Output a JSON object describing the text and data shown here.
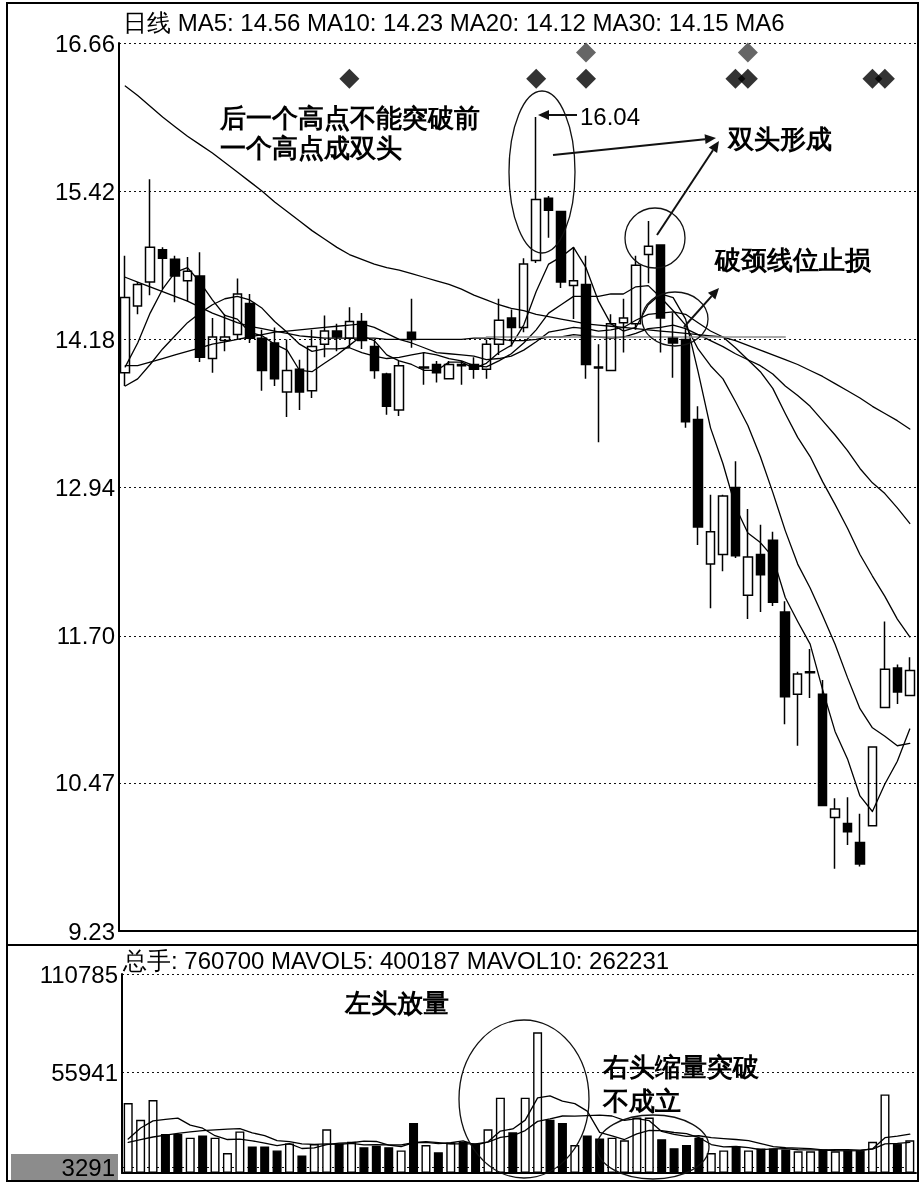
{
  "chart_data": [
    {
      "type": "candlestick",
      "title": "日线 MA5: 14.56 MA10: 14.23 MA20: 14.12 MA30: 14.15 MA6",
      "categories": [
        null,
        null,
        null,
        null,
        null,
        null,
        null,
        null,
        null,
        null,
        null,
        null,
        null,
        null,
        null,
        null,
        null,
        null,
        null,
        null,
        null,
        null,
        null,
        null,
        null,
        null,
        null,
        null,
        null,
        null,
        null,
        null,
        null,
        null,
        null,
        null,
        null,
        null,
        null,
        null,
        null,
        null,
        null,
        null,
        null,
        null,
        null,
        null,
        null,
        null,
        null,
        null,
        null,
        null,
        null,
        null,
        null,
        null,
        null,
        null,
        null,
        null,
        null,
        null
      ],
      "ohlc": [
        [
          13.9,
          14.88,
          13.79,
          14.53
        ],
        [
          14.46,
          14.66,
          14.39,
          14.64
        ],
        [
          14.66,
          15.52,
          14.55,
          14.95
        ],
        [
          14.93,
          14.95,
          14.6,
          14.86
        ],
        [
          14.85,
          14.88,
          14.49,
          14.71
        ],
        [
          14.67,
          14.87,
          14.5,
          14.75
        ],
        [
          14.71,
          14.91,
          13.99,
          14.03
        ],
        [
          14.02,
          14.36,
          13.9,
          14.2
        ],
        [
          14.17,
          14.39,
          14.08,
          14.2
        ],
        [
          14.22,
          14.69,
          14.18,
          14.56
        ],
        [
          14.48,
          14.56,
          14.15,
          14.19
        ],
        [
          14.19,
          14.26,
          13.75,
          13.92
        ],
        [
          14.15,
          14.28,
          13.79,
          13.85
        ],
        [
          13.74,
          14.18,
          13.53,
          13.92
        ],
        [
          13.93,
          14.01,
          13.59,
          13.74
        ],
        [
          13.75,
          14.26,
          13.69,
          14.12
        ],
        [
          14.14,
          14.38,
          14.03,
          14.25
        ],
        [
          14.25,
          14.31,
          14.08,
          14.2
        ],
        [
          14.19,
          14.45,
          14.11,
          14.33
        ],
        [
          14.33,
          14.4,
          14.1,
          14.17
        ],
        [
          14.12,
          14.17,
          13.85,
          13.92
        ],
        [
          13.89,
          13.9,
          13.55,
          13.62
        ],
        [
          13.59,
          14,
          13.54,
          13.96
        ],
        [
          14.24,
          14.52,
          14.11,
          14.18
        ],
        [
          13.94,
          14.07,
          13.8,
          13.95
        ],
        [
          13.97,
          14,
          13.82,
          13.9
        ],
        [
          13.85,
          14,
          13.85,
          13.97
        ],
        [
          13.97,
          14,
          13.8,
          13.96
        ],
        [
          13.97,
          14.03,
          13.85,
          13.93
        ],
        [
          13.93,
          14.18,
          13.85,
          14.14
        ],
        [
          14.14,
          14.52,
          14.05,
          14.34
        ],
        [
          14.36,
          14.43,
          14.12,
          14.28
        ],
        [
          14.28,
          14.86,
          14.24,
          14.81
        ],
        [
          14.84,
          16.04,
          14.82,
          15.35
        ],
        [
          15.36,
          15.38,
          15.03,
          15.26
        ],
        [
          15.25,
          15.25,
          14.61,
          14.66
        ],
        [
          14.63,
          14.95,
          14.35,
          14.67
        ],
        [
          14.64,
          14.88,
          13.85,
          13.97
        ],
        [
          13.95,
          14.14,
          13.32,
          13.94
        ],
        [
          13.92,
          14.39,
          13.92,
          14.31
        ],
        [
          14.32,
          14.52,
          14.07,
          14.36
        ],
        [
          14.31,
          14.88,
          14.26,
          14.8
        ],
        [
          14.89,
          15.17,
          14.65,
          14.96
        ],
        [
          14.97,
          14.97,
          14.07,
          14.36
        ],
        [
          14.19,
          14.4,
          13.86,
          14.15
        ],
        [
          14.18,
          14.28,
          13.44,
          13.49
        ],
        [
          13.51,
          13.62,
          12.46,
          12.61
        ],
        [
          12.3,
          12.88,
          11.93,
          12.57
        ],
        [
          12.38,
          12.88,
          12.24,
          12.87
        ],
        [
          12.94,
          13.16,
          12.35,
          12.37
        ],
        [
          12.04,
          12.76,
          11.84,
          12.36
        ],
        [
          12.38,
          12.63,
          11.9,
          12.21
        ],
        [
          12.5,
          12.57,
          11.95,
          11.98
        ],
        [
          11.9,
          11.99,
          10.96,
          11.19
        ],
        [
          11.21,
          11.4,
          10.78,
          11.38
        ],
        [
          11.39,
          11.59,
          11.18,
          11.4
        ],
        [
          11.21,
          11.33,
          10.28,
          10.28
        ],
        [
          10.18,
          10.34,
          9.75,
          10.25
        ],
        [
          10.13,
          10.35,
          9.95,
          10.06
        ],
        [
          9.97,
          10.21,
          9.77,
          9.79
        ],
        [
          10.11,
          10.77,
          10.11,
          10.77
        ],
        [
          11.1,
          11.82,
          11.1,
          11.42
        ],
        [
          11.43,
          11.46,
          11.13,
          11.23
        ],
        [
          11.2,
          11.52,
          11.2,
          11.41
        ]
      ],
      "series": [
        {
          "type": "line",
          "color": "#000000",
          "values": [
            13.95,
            14.15,
            14.4,
            14.6,
            14.74,
            14.78,
            14.66,
            14.51,
            14.38,
            14.35,
            14.24,
            14.21,
            14.14,
            14.09,
            13.92,
            13.91,
            13.98,
            14.05,
            14.13,
            14.21,
            14.17,
            14.05,
            14,
            13.97,
            13.92,
            13.92,
            13.99,
            13.99,
            13.94,
            13.98,
            14.07,
            14.13,
            14.3,
            14.58,
            14.81,
            14.87,
            14.95,
            14.78,
            14.5,
            14.31,
            14.25,
            14.28,
            14.47,
            14.56,
            14.53,
            14.35,
            13.91,
            13.44,
            13.14,
            12.78,
            12.56,
            12.48,
            12.36,
            12.02,
            11.82,
            11.63,
            11.25,
            10.9,
            10.67,
            10.36,
            10.23,
            10.46,
            10.65,
            10.92
          ]
        },
        {
          "type": "line",
          "color": "#000000",
          "values": [
            13.79,
            13.85,
            13.97,
            14.1,
            14.21,
            14.32,
            14.4,
            14.47,
            14.52,
            14.54,
            14.51,
            14.44,
            14.33,
            14.24,
            14.14,
            14.08,
            14.1,
            14.1,
            14.11,
            14.07,
            14.04,
            14.02,
            14.03,
            14.05,
            14.07,
            14.05,
            14.02,
            14,
            13.96,
            13.95,
            14,
            14.06,
            14.15,
            14.26,
            14.4,
            14.47,
            14.54,
            14.54,
            14.54,
            14.56,
            14.56,
            14.62,
            14.63,
            14.53,
            14.42,
            14.3,
            14.1,
            13.96,
            13.85,
            13.66,
            13.46,
            13.2,
            12.9,
            12.58,
            12.3,
            12.1,
            11.87,
            11.63,
            11.35,
            11.09,
            10.93,
            10.86,
            10.78,
            10.8
          ]
        },
        {
          "type": "line",
          "color": "#000000",
          "values": [
            13.96,
            13.96,
            13.99,
            14.02,
            14.05,
            14.08,
            14.11,
            14.14,
            14.16,
            14.18,
            14.2,
            14.22,
            14.24,
            14.25,
            14.26,
            14.27,
            14.28,
            14.29,
            14.3,
            14.31,
            14.28,
            14.23,
            14.18,
            14.15,
            14.11,
            14.07,
            14.06,
            14.05,
            14.04,
            14.01,
            14.02,
            14.04,
            14.09,
            14.16,
            14.24,
            14.26,
            14.28,
            14.27,
            14.25,
            14.26,
            14.28,
            14.34,
            14.39,
            14.4,
            14.41,
            14.39,
            14.32,
            14.25,
            14.2,
            14.11,
            14.01,
            13.91,
            13.77,
            13.56,
            13.36,
            13.2,
            12.99,
            12.8,
            12.6,
            12.38,
            12.2,
            12.03,
            11.84,
            11.69
          ]
        },
        {
          "type": "line",
          "color": "#000000",
          "values": [
            14.7,
            14.66,
            14.62,
            14.58,
            14.54,
            14.5,
            14.45,
            14.4,
            14.36,
            14.32,
            14.29,
            14.27,
            14.25,
            14.23,
            14.21,
            14.2,
            14.19,
            14.19,
            14.19,
            14.19,
            14.19,
            14.18,
            14.18,
            14.18,
            14.18,
            14.18,
            14.18,
            14.18,
            14.19,
            14.19,
            14.18,
            14.17,
            14.17,
            14.18,
            14.2,
            14.2,
            14.22,
            14.21,
            14.2,
            14.19,
            14.2,
            14.23,
            14.27,
            14.28,
            14.3,
            14.27,
            14.22,
            14.17,
            14.12,
            14.06,
            14.01,
            13.96,
            13.89,
            13.79,
            13.71,
            13.62,
            13.5,
            13.38,
            13.25,
            13.1,
            12.98,
            12.89,
            12.77,
            12.64
          ]
        },
        {
          "type": "line",
          "color": "#000000",
          "values": [
            16.3,
            16.22,
            16.13,
            16.04,
            15.96,
            15.88,
            15.81,
            15.74,
            15.66,
            15.58,
            15.5,
            15.42,
            15.33,
            15.25,
            15.17,
            15.09,
            15.02,
            14.95,
            14.89,
            14.85,
            14.81,
            14.78,
            14.76,
            14.73,
            14.7,
            14.67,
            14.64,
            14.6,
            14.55,
            14.51,
            14.47,
            14.44,
            14.42,
            14.39,
            14.37,
            14.35,
            14.33,
            14.31,
            14.3,
            14.29,
            14.28,
            14.27,
            14.26,
            14.25,
            14.24,
            14.23,
            14.22,
            14.21,
            14.2,
            14.17,
            14.13,
            14.09,
            14.05,
            14.01,
            13.97,
            13.92,
            13.87,
            13.81,
            13.75,
            13.69,
            13.62,
            13.56,
            13.5,
            13.43
          ]
        },
        {
          "type": "line",
          "color": "#8c8c8c",
          "values": [
            null,
            null,
            null,
            null,
            null,
            null,
            null,
            null,
            null,
            null,
            null,
            null,
            null,
            null,
            null,
            null,
            null,
            null,
            null,
            null,
            null,
            null,
            null,
            null,
            null,
            null,
            null,
            null,
            null,
            14.2,
            14.2,
            14.2,
            14.2,
            14.2,
            14.2,
            14.2,
            14.2,
            14.2,
            14.2,
            14.2,
            14.2,
            14.2,
            14.2,
            14.2,
            14.2,
            14.2,
            14.2,
            14.2,
            14.2,
            14.2,
            14.2,
            14.2,
            14.2,
            14.2,
            null,
            null,
            null,
            null,
            null,
            null,
            null,
            null,
            null,
            null
          ]
        },
        {
          "type": "scatter",
          "marker": "diamond",
          "color": "#000000",
          "values": [
            null,
            null,
            null,
            null,
            null,
            null,
            null,
            null,
            null,
            null,
            null,
            null,
            null,
            null,
            null,
            null,
            null,
            null,
            16.36,
            null,
            null,
            null,
            null,
            null,
            null,
            null,
            null,
            null,
            null,
            null,
            null,
            null,
            null,
            16.36,
            null,
            null,
            null,
            16.36,
            null,
            null,
            null,
            null,
            null,
            null,
            null,
            null,
            null,
            null,
            null,
            16.36,
            16.36,
            null,
            null,
            null,
            null,
            null,
            null,
            null,
            null,
            null,
            16.36,
            16.36,
            null,
            null
          ]
        },
        {
          "type": "scatter",
          "marker": "diamond",
          "color": "#404040",
          "values": [
            null,
            null,
            null,
            null,
            null,
            null,
            null,
            null,
            null,
            null,
            null,
            null,
            null,
            null,
            null,
            null,
            null,
            null,
            null,
            null,
            null,
            null,
            null,
            null,
            null,
            null,
            null,
            null,
            null,
            null,
            null,
            null,
            null,
            null,
            null,
            null,
            null,
            16.58,
            null,
            null,
            null,
            null,
            null,
            null,
            null,
            null,
            null,
            null,
            null,
            null,
            16.58,
            null,
            null,
            null,
            null,
            null,
            null,
            null,
            null,
            null,
            null,
            null,
            null,
            null
          ]
        }
      ],
      "ylim": [
        9.23,
        16.66
      ],
      "yticks": [
        9.23,
        10.47,
        {
          "value": 11.7,
          "label": "11.70"
        },
        12.94,
        14.18,
        15.42,
        16.66
      ],
      "grid": "y",
      "tick_labels": "y",
      "annotations": [
        "后一个高点不能突破前一个高点成双头",
        "16.04",
        "双头形成",
        "破颈线位止损"
      ]
    },
    {
      "type": "bar",
      "title": "总手: 760700 MAVOL5: 400187 MAVOL10: 262231",
      "categories": [
        null,
        null,
        null,
        null,
        null,
        null,
        null,
        null,
        null,
        null,
        null,
        null,
        null,
        null,
        null,
        null,
        null,
        null,
        null,
        null,
        null,
        null,
        null,
        null,
        null,
        null,
        null,
        null,
        null,
        null,
        null,
        null,
        null,
        null,
        null,
        null,
        null,
        null,
        null,
        null,
        null,
        null,
        null,
        null,
        null,
        null,
        null,
        null,
        null,
        null,
        null,
        null,
        null,
        null,
        null,
        null,
        null,
        null,
        null,
        null,
        null,
        null,
        null,
        null
      ],
      "series": [
        {
          "type": "bar",
          "values": [
            38900,
            29600,
            40600,
            21700,
            21700,
            19600,
            20800,
            19600,
            11100,
            23100,
            14700,
            14700,
            12500,
            16400,
            9700,
            16100,
            24300,
            16400,
            17300,
            14300,
            15100,
            14300,
            12500,
            27800,
            15500,
            11500,
            16800,
            17300,
            16400,
            24300,
            41900,
            22600,
            41900,
            78300,
            29600,
            27800,
            15500,
            20800,
            19100,
            19600,
            18200,
            30800,
            30800,
            18800,
            13800,
            15500,
            19600,
            11100,
            12500,
            14700,
            12500,
            13600,
            13600,
            13000,
            12000,
            12000,
            13000,
            12000,
            12500,
            12500,
            17300,
            43700,
            16400,
            18200
          ],
          "colors": [
            "#ffffff",
            "#ffffff",
            "#ffffff",
            "#000000",
            "#000000",
            "#ffffff",
            "#000000",
            "#ffffff",
            "#ffffff",
            "#ffffff",
            "#000000",
            "#000000",
            "#000000",
            "#ffffff",
            "#000000",
            "#ffffff",
            "#ffffff",
            "#000000",
            "#ffffff",
            "#000000",
            "#000000",
            "#000000",
            "#ffffff",
            "#000000",
            "#ffffff",
            "#000000",
            "#ffffff",
            "#000000",
            "#000000",
            "#ffffff",
            "#ffffff",
            "#000000",
            "#ffffff",
            "#ffffff",
            "#000000",
            "#000000",
            "#ffffff",
            "#000000",
            "#000000",
            "#ffffff",
            "#ffffff",
            "#ffffff",
            "#ffffff",
            "#000000",
            "#000000",
            "#000000",
            "#000000",
            "#ffffff",
            "#ffffff",
            "#000000",
            "#ffffff",
            "#000000",
            "#000000",
            "#000000",
            "#ffffff",
            "#ffffff",
            "#000000",
            "#ffffff",
            "#000000",
            "#000000",
            "#ffffff",
            "#ffffff",
            "#000000",
            "#ffffff"
          ]
        },
        {
          "type": "line",
          "color": "#000000",
          "values": [
            18900,
            25000,
            29000,
            29800,
            30500,
            26600,
            24900,
            20700,
            18600,
            18800,
            17900,
            16600,
            15200,
            16300,
            13600,
            13900,
            15800,
            16600,
            16800,
            17700,
            17500,
            15500,
            14700,
            16800,
            17000,
            16300,
            16800,
            17800,
            15500,
            17300,
            23300,
            24500,
            29400,
            41800,
            42900,
            40000,
            38600,
            34400,
            22600,
            20600,
            18600,
            21700,
            23700,
            23600,
            22500,
            21900,
            19700,
            15800,
            14500,
            14700,
            14100,
            12900,
            13400,
            13500,
            12900,
            12800,
            12700,
            12400,
            12300,
            12400,
            13500,
            19600,
            20500,
            21600
          ]
        },
        {
          "type": "line",
          "color": "#000000",
          "values": [
            17000,
            18500,
            20000,
            21000,
            22000,
            22800,
            23500,
            24000,
            24400,
            24700,
            22300,
            20800,
            18000,
            17400,
            16200,
            15900,
            16200,
            15900,
            16500,
            15600,
            15700,
            15600,
            15600,
            16800,
            17400,
            16900,
            16200,
            16200,
            16200,
            17200,
            19800,
            20700,
            23600,
            28700,
            30100,
            31700,
            31600,
            31900,
            32200,
            31700,
            29300,
            30200,
            29100,
            23100,
            21500,
            20300,
            20700,
            19700,
            19100,
            18600,
            18000,
            16300,
            14600,
            14000,
            13800,
            13500,
            12800,
            12900,
            12900,
            12700,
            13200,
            16200,
            16400,
            17000
          ]
        }
      ],
      "ylim": [
        0,
        110785
      ],
      "yticks": [
        3291,
        55941,
        110785
      ],
      "grid": "y",
      "tick_labels": "y",
      "annotations": [
        "左头放量",
        "右头缩量突破不成立"
      ]
    }
  ]
}
